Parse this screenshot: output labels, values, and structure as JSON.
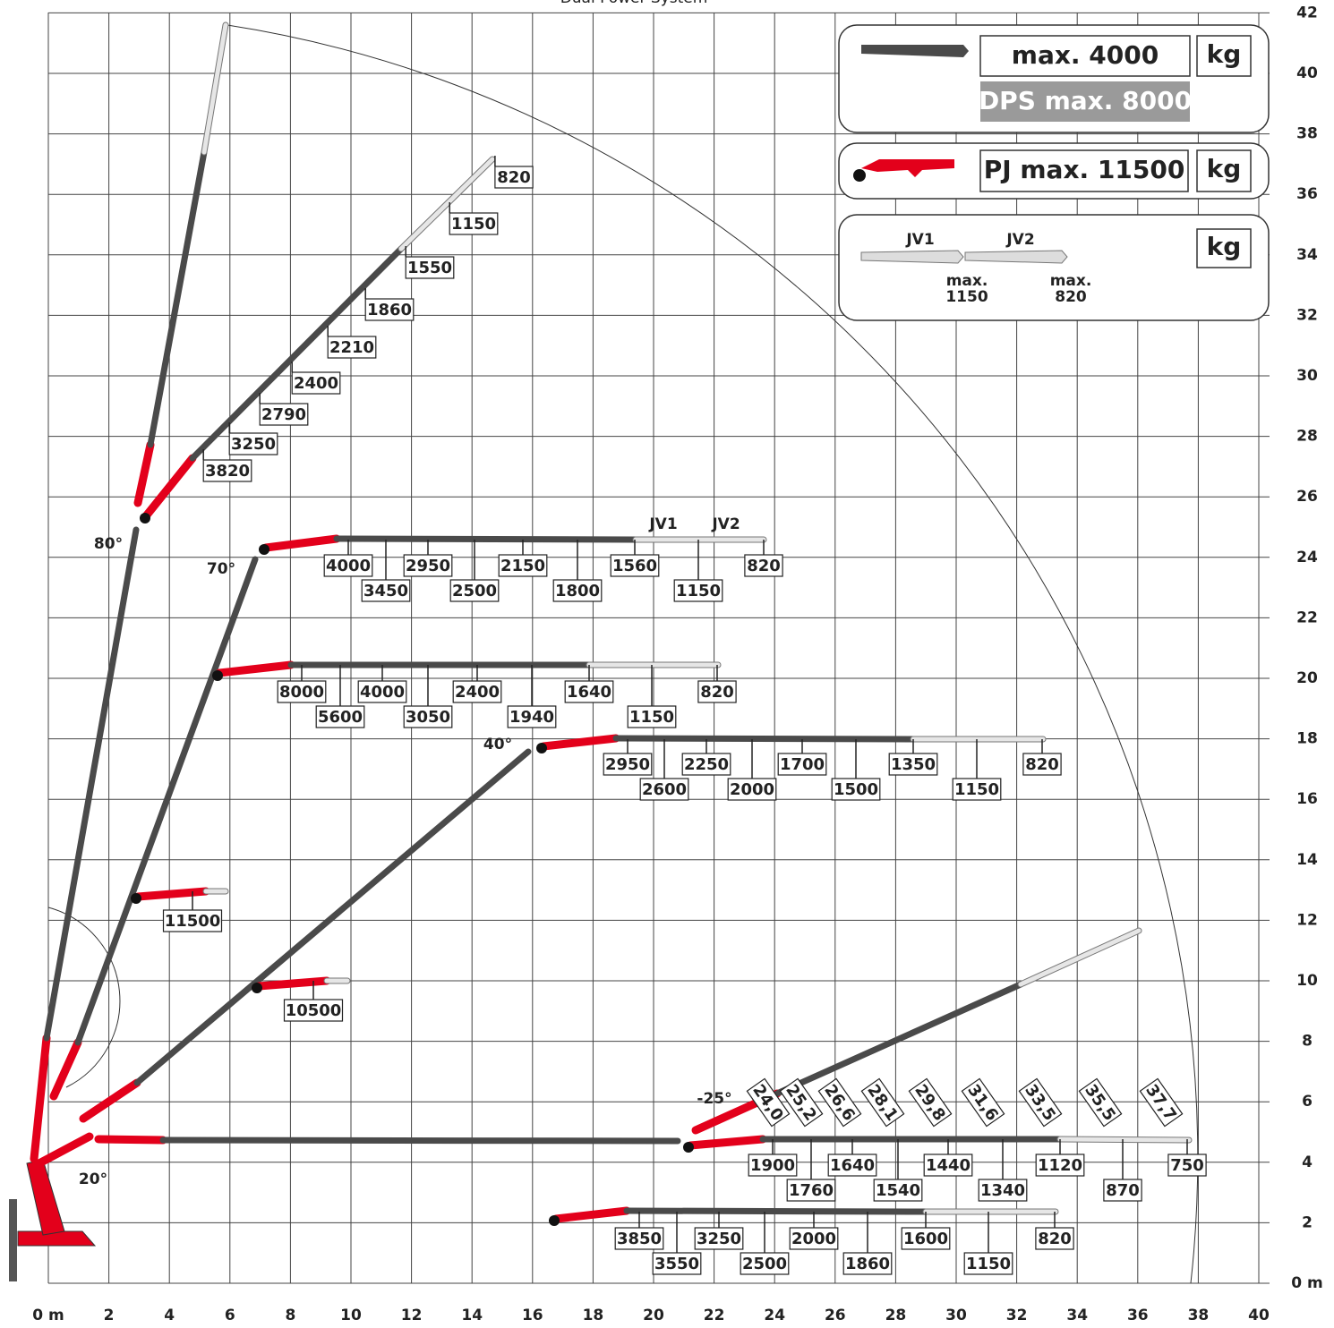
{
  "title": "Dual Power System",
  "x_axis": {
    "ticks": [
      {
        "value": 0,
        "label": "0 m"
      },
      2,
      4,
      6,
      8,
      10,
      12,
      14,
      16,
      18,
      20,
      22,
      24,
      26,
      28,
      30,
      32,
      34,
      36,
      38,
      40
    ]
  },
  "y_axis": {
    "ticks": [
      {
        "value": 0,
        "label": "0 m"
      },
      2,
      4,
      6,
      8,
      10,
      12,
      14,
      16,
      18,
      20,
      22,
      24,
      26,
      28,
      30,
      32,
      34,
      36,
      38,
      40,
      42
    ]
  },
  "legend": {
    "boom": {
      "label": "max. 4000",
      "unit": "kg",
      "dps": "DPS max. 8000"
    },
    "pj": {
      "label": "PJ max. 11500",
      "unit": "kg"
    },
    "jib": {
      "jv1": "JV1",
      "jv2": "JV2",
      "jv1_max": [
        "max.",
        "1150"
      ],
      "jv2_max": [
        "max.",
        "820"
      ],
      "unit": "kg"
    }
  },
  "angles": [
    "80°",
    "70°",
    "40°",
    "20°",
    "-25°"
  ],
  "jib_labels": [
    "JV1",
    "JV2"
  ],
  "configs": [
    {
      "loads": [
        3820,
        3250,
        2790,
        2400,
        2210,
        1860,
        1550,
        1150,
        820
      ]
    },
    {
      "loads": [
        4000,
        3450,
        2950,
        2500,
        2150,
        1800,
        1560,
        1150,
        820
      ]
    },
    {
      "loads": [
        8000,
        5600,
        4000,
        3050,
        2400,
        1940,
        1640,
        1150,
        820
      ]
    },
    {
      "loads": [
        2950,
        2600,
        2250,
        2000,
        1700,
        1500,
        1350,
        1150,
        820
      ]
    },
    {
      "loads": [
        1900,
        1760,
        1640,
        1540,
        1440,
        1340,
        1120,
        870,
        750
      ]
    },
    {
      "loads": [
        3850,
        3550,
        3250,
        2500,
        2000,
        1860,
        1600,
        1150,
        820
      ]
    }
  ],
  "pj_loads": [
    11500,
    10500
  ],
  "reach_labels": [
    "24,0",
    "25,2",
    "26,6",
    "28,1",
    "29,8",
    "31,6",
    "33,5",
    "35,5",
    "37,7"
  ]
}
